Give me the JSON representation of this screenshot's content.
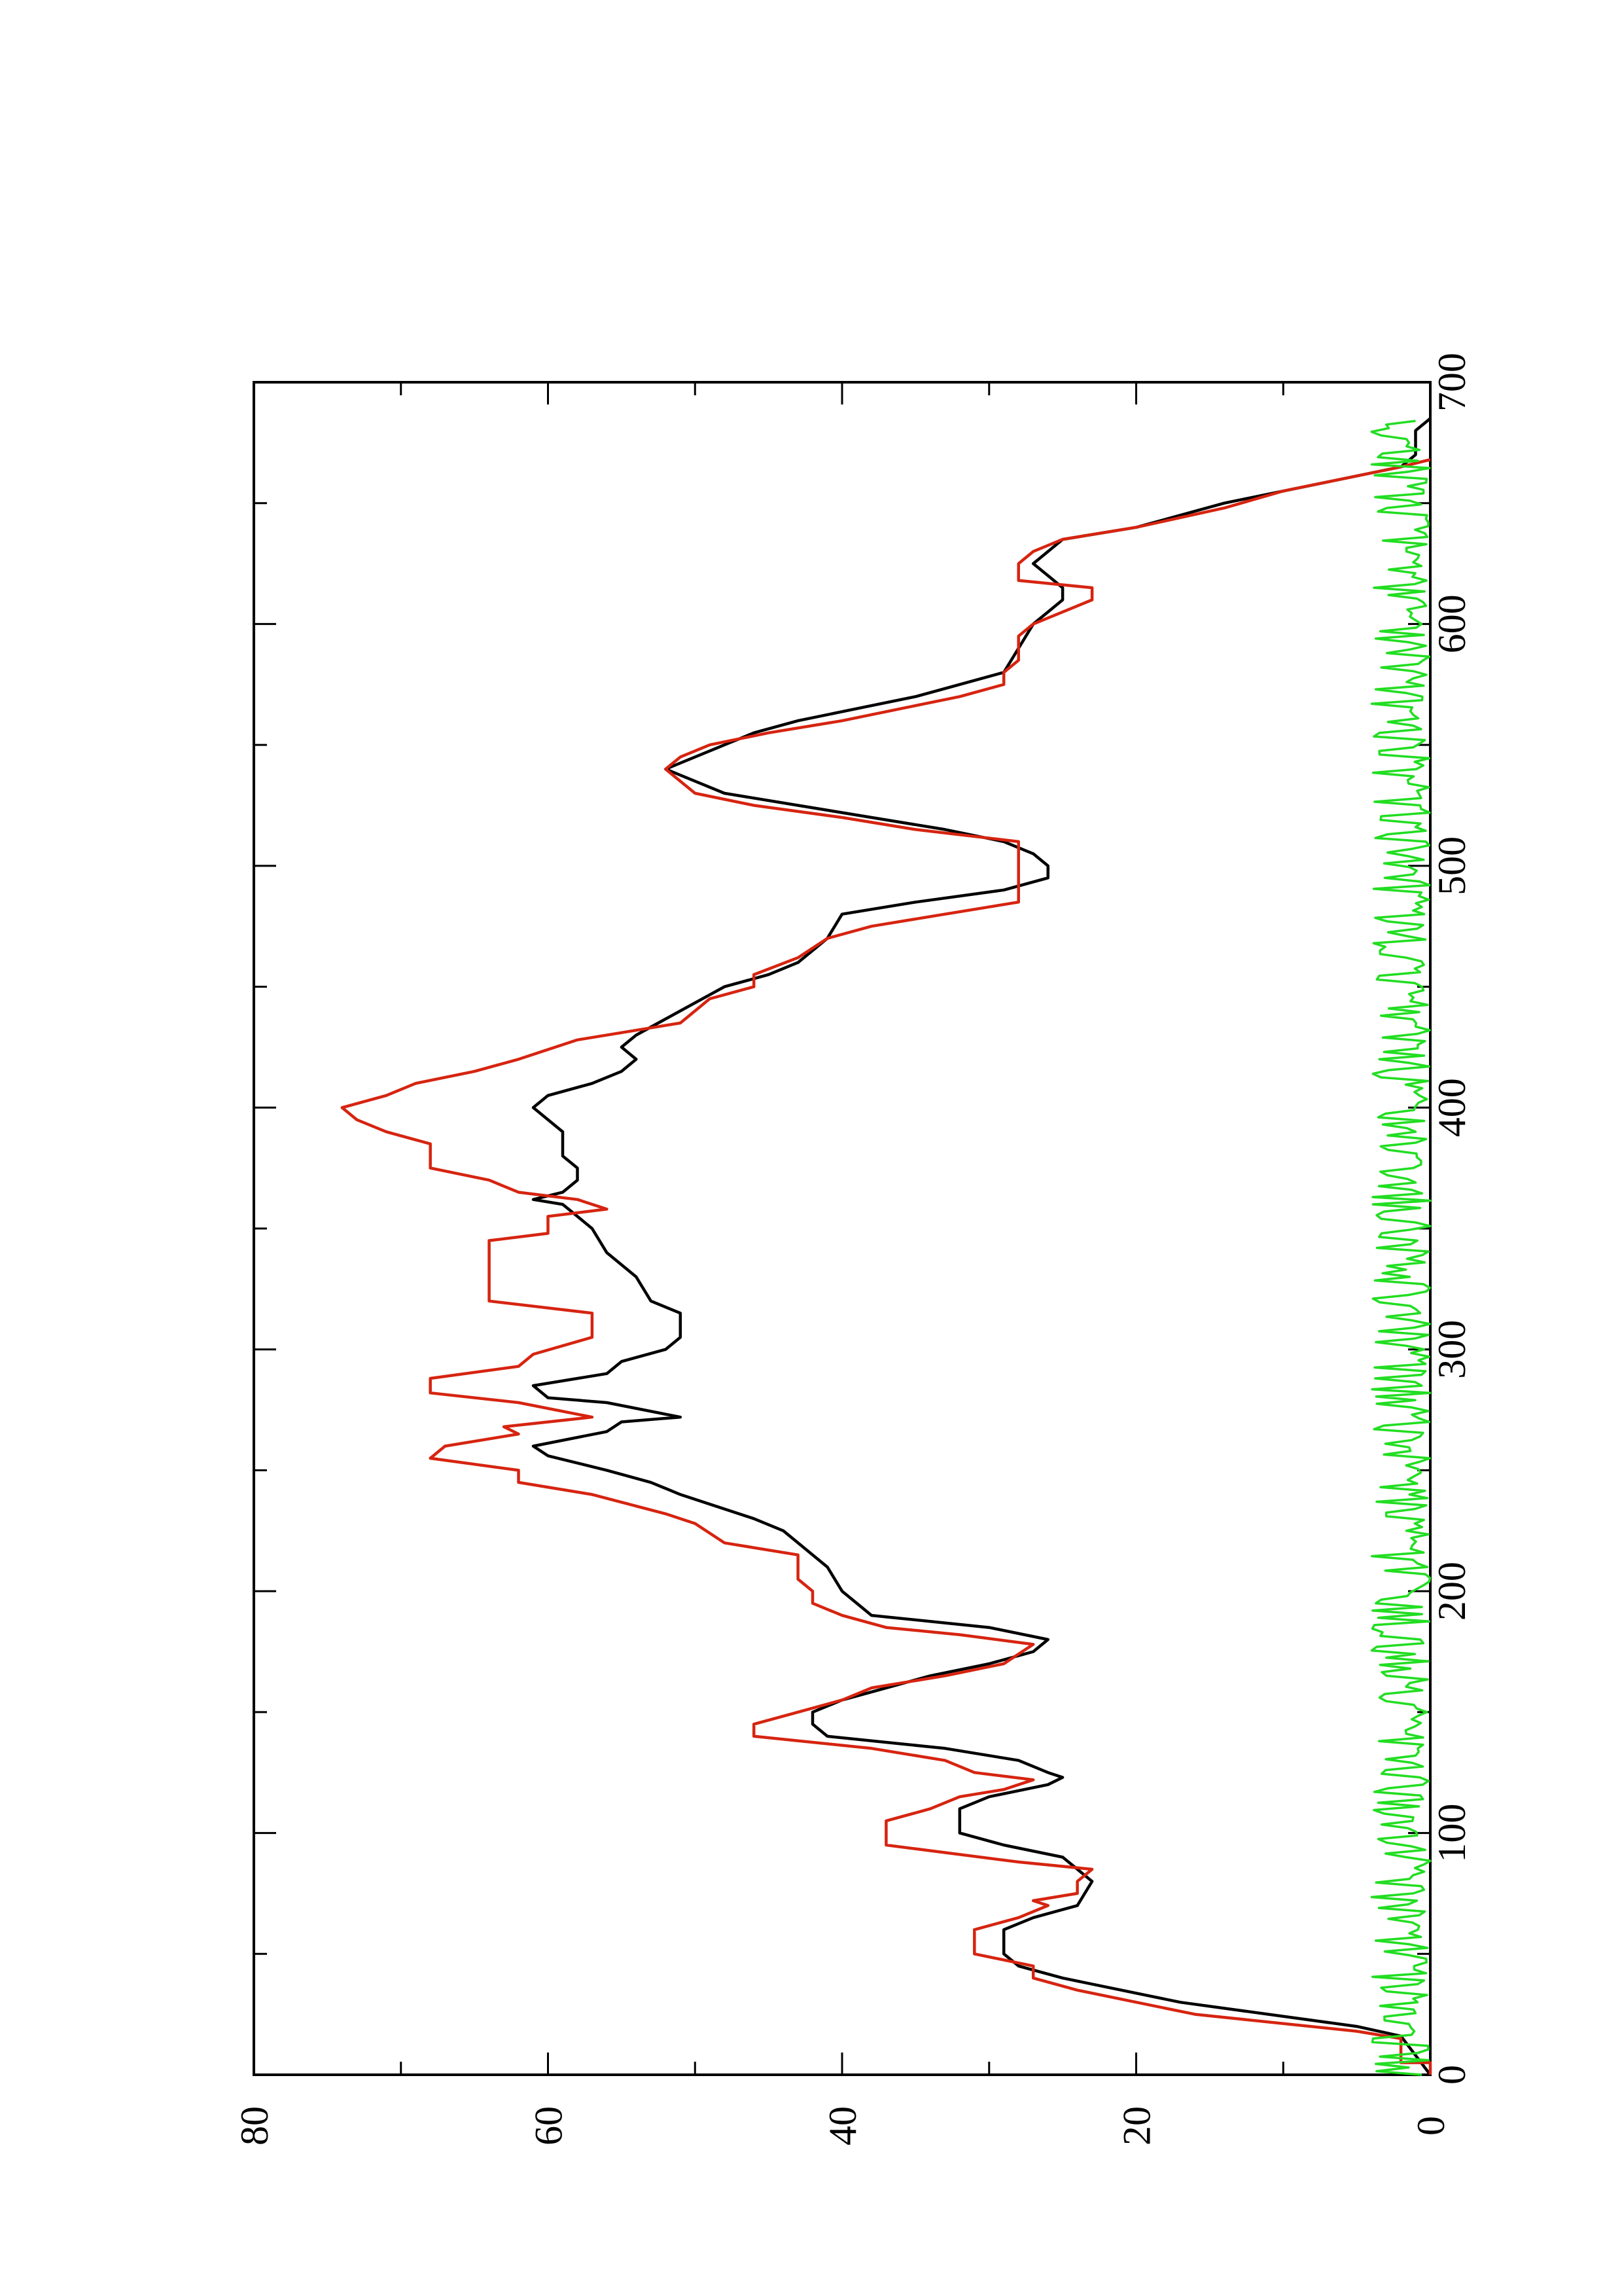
{
  "chart_data": {
    "type": "line",
    "title": "",
    "xlabel": "",
    "ylabel": "",
    "orientation": "rotated-90-ccw",
    "xlim": [
      0,
      700
    ],
    "ylim": [
      0,
      80
    ],
    "x_ticks": [
      "0",
      "100",
      "200",
      "300",
      "400",
      "500",
      "600",
      "700"
    ],
    "y_ticks": [
      "0",
      "20",
      "40",
      "60",
      "80"
    ],
    "grid": false,
    "legend": "none",
    "series": [
      {
        "color": "#000000",
        "points": [
          [
            0,
            0
          ],
          [
            8,
            1
          ],
          [
            16,
            2
          ],
          [
            20,
            5
          ],
          [
            30,
            17
          ],
          [
            40,
            25
          ],
          [
            45,
            28
          ],
          [
            50,
            29
          ],
          [
            60,
            29
          ],
          [
            65,
            27
          ],
          [
            70,
            24
          ],
          [
            80,
            23
          ],
          [
            85,
            24
          ],
          [
            90,
            25
          ],
          [
            95,
            29
          ],
          [
            100,
            32
          ],
          [
            110,
            32
          ],
          [
            115,
            30
          ],
          [
            120,
            26
          ],
          [
            123,
            25
          ],
          [
            125,
            26
          ],
          [
            130,
            28
          ],
          [
            135,
            33
          ],
          [
            140,
            41
          ],
          [
            145,
            42
          ],
          [
            150,
            42
          ],
          [
            155,
            40
          ],
          [
            160,
            37
          ],
          [
            165,
            34
          ],
          [
            170,
            30
          ],
          [
            175,
            27
          ],
          [
            180,
            26
          ],
          [
            185,
            30
          ],
          [
            190,
            38
          ],
          [
            195,
            39
          ],
          [
            200,
            40
          ],
          [
            210,
            41
          ],
          [
            220,
            43
          ],
          [
            225,
            44
          ],
          [
            230,
            46
          ],
          [
            240,
            51
          ],
          [
            245,
            53
          ],
          [
            250,
            56
          ],
          [
            256,
            60
          ],
          [
            260,
            61
          ],
          [
            266,
            56
          ],
          [
            270,
            55
          ],
          [
            272,
            51
          ],
          [
            278,
            56
          ],
          [
            280,
            60
          ],
          [
            285,
            61
          ],
          [
            290,
            56
          ],
          [
            295,
            55
          ],
          [
            300,
            52
          ],
          [
            305,
            51
          ],
          [
            315,
            51
          ],
          [
            320,
            53
          ],
          [
            330,
            54
          ],
          [
            340,
            56
          ],
          [
            350,
            57
          ],
          [
            355,
            58
          ],
          [
            360,
            59
          ],
          [
            362,
            61
          ],
          [
            365,
            59
          ],
          [
            370,
            58
          ],
          [
            375,
            58
          ],
          [
            380,
            59
          ],
          [
            390,
            59
          ],
          [
            395,
            60
          ],
          [
            400,
            61
          ],
          [
            405,
            60
          ],
          [
            410,
            57
          ],
          [
            415,
            55
          ],
          [
            420,
            54
          ],
          [
            425,
            55
          ],
          [
            430,
            54
          ],
          [
            440,
            51
          ],
          [
            450,
            48
          ],
          [
            455,
            45
          ],
          [
            460,
            43
          ],
          [
            470,
            41
          ],
          [
            480,
            40
          ],
          [
            485,
            35
          ],
          [
            490,
            29
          ],
          [
            495,
            26
          ],
          [
            500,
            26
          ],
          [
            505,
            27
          ],
          [
            510,
            29
          ],
          [
            515,
            33
          ],
          [
            520,
            38
          ],
          [
            525,
            43
          ],
          [
            530,
            48
          ],
          [
            535,
            50
          ],
          [
            540,
            52
          ],
          [
            545,
            50
          ],
          [
            550,
            48
          ],
          [
            555,
            46
          ],
          [
            560,
            43
          ],
          [
            565,
            39
          ],
          [
            570,
            35
          ],
          [
            575,
            32
          ],
          [
            580,
            29
          ],
          [
            590,
            28
          ],
          [
            600,
            27
          ],
          [
            605,
            26
          ],
          [
            610,
            25
          ],
          [
            615,
            25
          ],
          [
            620,
            26
          ],
          [
            625,
            27
          ],
          [
            630,
            26
          ],
          [
            635,
            25
          ],
          [
            640,
            20
          ],
          [
            650,
            14
          ],
          [
            660,
            6
          ],
          [
            665,
            2
          ],
          [
            670,
            1
          ],
          [
            680,
            1
          ],
          [
            685,
            0
          ]
        ]
      },
      {
        "color": "#d62410",
        "points": [
          [
            0,
            0
          ],
          [
            5,
            0
          ],
          [
            5,
            2
          ],
          [
            10,
            2
          ],
          [
            15,
            2
          ],
          [
            18,
            5
          ],
          [
            25,
            16
          ],
          [
            35,
            24
          ],
          [
            40,
            27
          ],
          [
            45,
            27
          ],
          [
            50,
            31
          ],
          [
            55,
            31
          ],
          [
            60,
            31
          ],
          [
            65,
            28
          ],
          [
            70,
            26
          ],
          [
            72,
            27
          ],
          [
            75,
            24
          ],
          [
            80,
            24
          ],
          [
            85,
            23
          ],
          [
            88,
            28
          ],
          [
            95,
            37
          ],
          [
            105,
            37
          ],
          [
            110,
            34
          ],
          [
            115,
            32
          ],
          [
            118,
            29
          ],
          [
            122,
            27
          ],
          [
            125,
            31
          ],
          [
            130,
            33
          ],
          [
            135,
            38
          ],
          [
            140,
            46
          ],
          [
            145,
            46
          ],
          [
            150,
            43
          ],
          [
            155,
            40
          ],
          [
            160,
            38
          ],
          [
            165,
            33
          ],
          [
            170,
            29
          ],
          [
            178,
            27
          ],
          [
            182,
            32
          ],
          [
            185,
            37
          ],
          [
            190,
            40
          ],
          [
            195,
            42
          ],
          [
            200,
            42
          ],
          [
            205,
            43
          ],
          [
            215,
            43
          ],
          [
            220,
            48
          ],
          [
            228,
            50
          ],
          [
            232,
            52
          ],
          [
            240,
            57
          ],
          [
            245,
            62
          ],
          [
            250,
            62
          ],
          [
            255,
            68
          ],
          [
            260,
            67
          ],
          [
            265,
            62
          ],
          [
            268,
            63
          ],
          [
            272,
            57
          ],
          [
            278,
            62
          ],
          [
            282,
            68
          ],
          [
            288,
            68
          ],
          [
            293,
            62
          ],
          [
            298,
            61
          ],
          [
            305,
            57
          ],
          [
            315,
            57
          ],
          [
            320,
            64
          ],
          [
            345,
            64
          ],
          [
            348,
            60
          ],
          [
            355,
            60
          ],
          [
            358,
            56
          ],
          [
            362,
            58
          ],
          [
            365,
            62
          ],
          [
            370,
            64
          ],
          [
            375,
            68
          ],
          [
            385,
            68
          ],
          [
            390,
            71
          ],
          [
            395,
            73
          ],
          [
            400,
            74
          ],
          [
            405,
            71
          ],
          [
            410,
            69
          ],
          [
            415,
            65
          ],
          [
            420,
            62
          ],
          [
            428,
            58
          ],
          [
            435,
            51
          ],
          [
            445,
            49
          ],
          [
            450,
            46
          ],
          [
            455,
            46
          ],
          [
            462,
            43
          ],
          [
            470,
            41
          ],
          [
            475,
            38
          ],
          [
            480,
            33
          ],
          [
            485,
            28
          ],
          [
            495,
            28
          ],
          [
            505,
            28
          ],
          [
            510,
            28
          ],
          [
            515,
            35
          ],
          [
            520,
            40
          ],
          [
            525,
            46
          ],
          [
            530,
            50
          ],
          [
            535,
            51
          ],
          [
            540,
            52
          ],
          [
            545,
            51
          ],
          [
            550,
            49
          ],
          [
            555,
            45
          ],
          [
            560,
            40
          ],
          [
            565,
            36
          ],
          [
            570,
            32
          ],
          [
            575,
            29
          ],
          [
            580,
            29
          ],
          [
            585,
            28
          ],
          [
            590,
            28
          ],
          [
            595,
            28
          ],
          [
            600,
            27
          ],
          [
            610,
            23
          ],
          [
            615,
            23
          ],
          [
            618,
            28
          ],
          [
            620,
            28
          ],
          [
            625,
            28
          ],
          [
            630,
            27
          ],
          [
            635,
            25
          ],
          [
            640,
            20
          ],
          [
            648,
            14
          ],
          [
            655,
            10
          ],
          [
            660,
            6
          ],
          [
            665,
            2
          ],
          [
            668,
            0
          ]
        ]
      },
      {
        "color": "#22dd22",
        "noise": true,
        "amplitude": 4,
        "seed": 7,
        "xrange": [
          0,
          685
        ],
        "step": 1.5
      }
    ]
  }
}
